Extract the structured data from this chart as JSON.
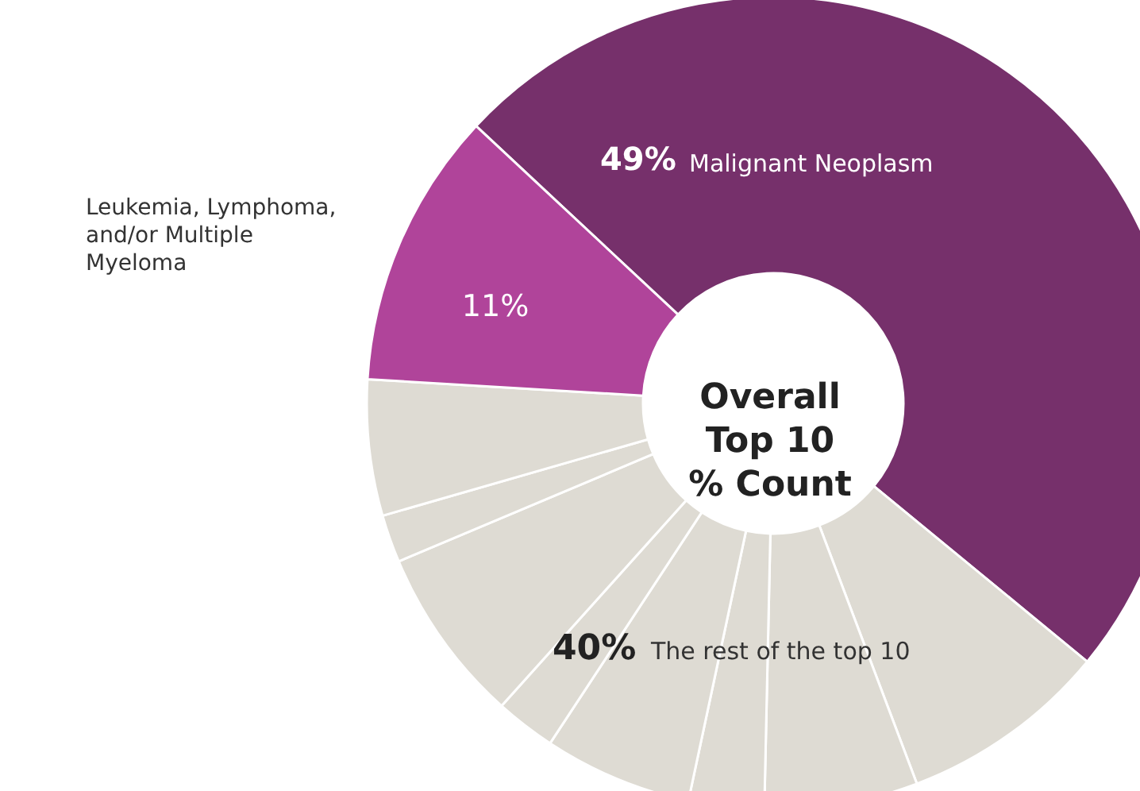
{
  "chart_data": {
    "type": "donut",
    "title": "Overall Top 10 % Count",
    "categories": [
      "Malignant Neoplasm",
      null,
      null,
      null,
      null,
      null,
      null,
      null,
      null,
      "Leukemia, Lymphoma, and/or Multiple Myeloma"
    ],
    "values": [
      49,
      8.3,
      6.1,
      3.0,
      5.9,
      2.4,
      7.0,
      1.9,
      5.4,
      11
    ],
    "colors": [
      "#76306b",
      "#dedbd3",
      "#dedbd3",
      "#dedbd3",
      "#dedbd3",
      "#dedbd3",
      "#dedbd3",
      "#dedbd3",
      "#dedbd3",
      "#b0449a"
    ],
    "value_labels": [
      "49%",
      null,
      null,
      null,
      null,
      null,
      null,
      null,
      null,
      "11%"
    ],
    "annotations": [
      "40% The rest of the top 10"
    ]
  }
}
